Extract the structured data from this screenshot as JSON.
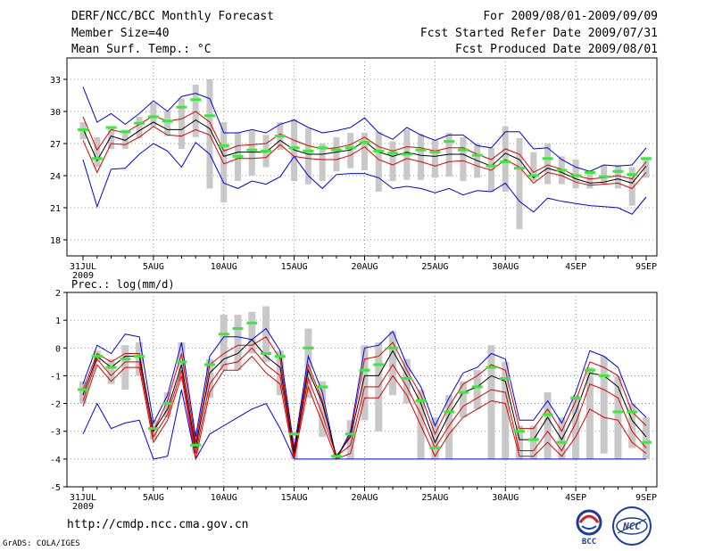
{
  "header": {
    "title": "DERF/NCC/BCC Monthly Forecast",
    "member_size": "Member Size=40",
    "variable": "Mean Surf. Temp.: °C",
    "period": "For 2009/08/01-2009/09/09",
    "started": "Fcst Started Refer Date 2009/07/31",
    "produced": "Fcst Produced Date 2009/08/01"
  },
  "footer": {
    "url": "http://cmdp.ncc.cma.gov.cn",
    "credit": "GrADS: COLA/IGES",
    "logo_bcc": "BCC",
    "logo_ncc": "NCC"
  },
  "colors": {
    "envelope": "#0000ee",
    "spread": "#e00000",
    "mean": "#000000",
    "bar": "#c8c8c8",
    "marker": "#33ee33"
  },
  "chart_data": [
    {
      "type": "line",
      "title": "Mean Surf. Temp.: °C",
      "x_start_label": "31JUL",
      "x_year_label": "2009",
      "x_tick_labels": [
        "31JUL",
        "5AUG",
        "10AUG",
        "15AUG",
        "20AUG",
        "25AUG",
        "30AUG",
        "4SEP",
        "9SEP"
      ],
      "x_tick_days": [
        0,
        5,
        10,
        15,
        20,
        25,
        30,
        35,
        40
      ],
      "ylim": [
        16.5,
        35.0
      ],
      "yticks": [
        18,
        21,
        24,
        27,
        30,
        33
      ],
      "grid": true,
      "series": [
        {
          "name": "max",
          "values": [
            32.3,
            29.0,
            29.8,
            28.8,
            29.8,
            31.0,
            30.0,
            31.4,
            31.7,
            31.2,
            28.0,
            28.0,
            28.3,
            28.0,
            28.8,
            29.2,
            28.5,
            28.0,
            28.2,
            28.5,
            29.4,
            28.0,
            27.4,
            28.5,
            27.8,
            27.3,
            27.8,
            27.8,
            26.8,
            26.6,
            28.1,
            28.1,
            26.5,
            26.6,
            25.5,
            24.8,
            24.4,
            25.0,
            24.9,
            25.0,
            26.6
          ]
        },
        {
          "name": "upper",
          "values": [
            29.5,
            26.4,
            28.3,
            28.0,
            28.8,
            29.6,
            29.1,
            29.3,
            30.0,
            29.0,
            26.3,
            26.8,
            26.9,
            27.0,
            27.9,
            27.3,
            26.8,
            26.5,
            26.6,
            26.9,
            27.6,
            26.7,
            26.3,
            26.7,
            26.6,
            26.3,
            26.6,
            26.6,
            26.0,
            25.5,
            26.5,
            26.0,
            24.3,
            25.0,
            24.6,
            24.0,
            23.7,
            23.8,
            24.0,
            23.7,
            25.3
          ]
        },
        {
          "name": "mean",
          "values": [
            28.4,
            25.4,
            27.7,
            27.3,
            28.2,
            29.0,
            28.3,
            28.3,
            29.2,
            28.4,
            25.8,
            26.2,
            26.2,
            26.2,
            27.3,
            26.4,
            26.0,
            26.0,
            26.2,
            26.4,
            27.2,
            26.2,
            25.8,
            26.2,
            25.9,
            25.8,
            26.0,
            26.0,
            25.4,
            24.9,
            26.1,
            25.5,
            23.8,
            24.7,
            24.3,
            23.7,
            23.3,
            23.4,
            23.7,
            23.3,
            24.9
          ]
        },
        {
          "name": "lower",
          "values": [
            27.3,
            24.3,
            27.0,
            26.9,
            27.6,
            28.6,
            27.8,
            27.7,
            28.3,
            27.8,
            25.1,
            25.6,
            25.6,
            25.7,
            26.9,
            25.8,
            25.6,
            25.5,
            25.5,
            25.9,
            26.7,
            25.5,
            25.0,
            25.6,
            25.3,
            24.9,
            25.3,
            25.4,
            24.9,
            24.5,
            25.5,
            24.8,
            23.3,
            24.3,
            24.0,
            23.4,
            23.1,
            23.2,
            23.3,
            22.8,
            24.3
          ]
        },
        {
          "name": "min",
          "values": [
            25.5,
            21.1,
            24.6,
            24.7,
            26.0,
            27.0,
            26.3,
            24.8,
            27.1,
            26.0,
            23.3,
            22.8,
            23.5,
            23.2,
            23.9,
            25.8,
            24.0,
            22.8,
            24.1,
            24.2,
            24.2,
            23.8,
            22.8,
            23.0,
            22.8,
            22.4,
            22.8,
            22.2,
            22.6,
            22.5,
            23.3,
            21.6,
            20.6,
            21.9,
            21.6,
            21.4,
            21.2,
            21.1,
            21.0,
            20.4,
            22.0
          ]
        },
        {
          "name": "bar_top",
          "values": [
            29.0,
            27.6,
            28.5,
            28.3,
            29.5,
            30.8,
            30.0,
            31.2,
            32.5,
            33.0,
            29.0,
            28.0,
            28.2,
            27.8,
            29.0,
            29.3,
            28.4,
            27.0,
            27.6,
            28.0,
            28.0,
            28.1,
            27.2,
            28.3,
            27.9,
            27.3,
            28.0,
            27.6,
            27.0,
            26.6,
            28.6,
            27.5,
            26.2,
            27.0,
            25.8,
            25.5,
            24.5,
            25.0,
            25.0,
            24.8,
            25.5
          ]
        },
        {
          "name": "bar_bottom",
          "values": [
            27.4,
            24.8,
            26.5,
            26.5,
            27.5,
            28.6,
            27.7,
            26.5,
            27.6,
            22.8,
            21.5,
            23.5,
            24.0,
            24.8,
            26.4,
            23.5,
            23.2,
            23.5,
            24.4,
            24.7,
            24.5,
            22.5,
            23.5,
            23.6,
            23.6,
            23.8,
            23.9,
            23.5,
            23.8,
            22.5,
            22.5,
            19.0,
            23.5,
            23.2,
            23.2,
            22.8,
            22.8,
            23.2,
            22.8,
            21.2,
            23.8
          ]
        },
        {
          "name": "observed_marker",
          "values": [
            28.3,
            25.6,
            28.5,
            28.1,
            28.9,
            29.5,
            29.1,
            30.4,
            31.1,
            29.6,
            26.8,
            25.8,
            26.4,
            26.3,
            27.7,
            26.6,
            26.3,
            26.6,
            26.4,
            26.6,
            27.1,
            26.3,
            26.1,
            26.0,
            26.4,
            26.2,
            27.2,
            26.4,
            25.9,
            24.9,
            25.3,
            24.7,
            24.0,
            25.6,
            24.5,
            24.0,
            24.3,
            23.9,
            24.4,
            24.1,
            25.6
          ]
        }
      ]
    },
    {
      "type": "line",
      "title": "Prec.: log(mm/d)",
      "x_start_label": "31JUL",
      "x_year_label": "2009",
      "x_tick_labels": [
        "31JUL",
        "5AUG",
        "10AUG",
        "15AUG",
        "20AUG",
        "25AUG",
        "30AUG",
        "4SEP",
        "9SEP"
      ],
      "x_tick_days": [
        0,
        5,
        10,
        15,
        20,
        25,
        30,
        35,
        40
      ],
      "ylim": [
        -5,
        2
      ],
      "yticks": [
        -5,
        -4,
        -3,
        -2,
        -1,
        0,
        1,
        2
      ],
      "grid": true,
      "series": [
        {
          "name": "max",
          "values": [
            -1.3,
            0.1,
            -0.2,
            0.5,
            0.4,
            -2.7,
            -1.7,
            0.2,
            -3.2,
            -0.3,
            0.4,
            0.4,
            0.3,
            0.7,
            -0.1,
            -3.6,
            -0.3,
            -1.6,
            -4.0,
            -3.0,
            0.0,
            0.1,
            0.6,
            -0.6,
            -1.4,
            -2.8,
            -1.8,
            -0.9,
            -0.7,
            -0.2,
            -0.4,
            -2.6,
            -2.6,
            -1.9,
            -2.7,
            -1.6,
            -0.1,
            -0.3,
            -0.7,
            -2.0,
            -2.5
          ]
        },
        {
          "name": "upper",
          "values": [
            -1.5,
            -0.2,
            -0.5,
            -0.2,
            -0.2,
            -3.0,
            -1.9,
            -0.2,
            -3.4,
            -0.6,
            -0.2,
            0.1,
            0.1,
            0.4,
            -0.4,
            -3.7,
            -0.6,
            -1.9,
            -4.0,
            -3.1,
            -0.4,
            -0.3,
            0.2,
            -0.8,
            -1.7,
            -3.1,
            -2.1,
            -1.3,
            -1.0,
            -0.6,
            -0.8,
            -2.9,
            -2.9,
            -2.2,
            -3.0,
            -1.9,
            -0.5,
            -0.7,
            -1.0,
            -2.3,
            -2.8
          ]
        },
        {
          "name": "mean",
          "values": [
            -1.7,
            -0.3,
            -0.7,
            -0.3,
            -0.3,
            -3.0,
            -2.2,
            -0.6,
            -3.6,
            -0.9,
            -0.4,
            -0.2,
            0.3,
            -0.3,
            -0.7,
            -3.8,
            -0.8,
            -2.0,
            -3.9,
            -3.2,
            -1.0,
            -1.0,
            -0.1,
            -1.0,
            -2.0,
            -3.4,
            -2.4,
            -1.6,
            -1.4,
            -1.0,
            -1.2,
            -3.3,
            -3.3,
            -2.5,
            -3.3,
            -2.3,
            -0.9,
            -1.0,
            -1.4,
            -2.6,
            -3.2
          ]
        },
        {
          "name": "lower",
          "values": [
            -1.9,
            -0.4,
            -1.0,
            -0.5,
            -0.5,
            -3.2,
            -2.4,
            -0.8,
            -3.8,
            -1.3,
            -0.6,
            -0.5,
            0.0,
            -0.6,
            -1.0,
            -3.9,
            -1.1,
            -2.4,
            -3.9,
            -3.5,
            -1.4,
            -1.4,
            -0.6,
            -1.4,
            -2.4,
            -3.6,
            -2.8,
            -2.1,
            -1.8,
            -1.5,
            -1.6,
            -3.7,
            -3.7,
            -3.0,
            -3.7,
            -2.7,
            -1.3,
            -1.5,
            -1.8,
            -3.0,
            -3.6
          ]
        },
        {
          "name": "lower2",
          "values": [
            -2.1,
            -0.6,
            -1.2,
            -0.7,
            -0.7,
            -3.4,
            -2.6,
            -1.0,
            -4.0,
            -1.6,
            -0.8,
            -0.8,
            -0.3,
            -0.9,
            -1.3,
            -4.0,
            -1.4,
            -2.7,
            -4.0,
            -3.8,
            -1.8,
            -1.8,
            -1.0,
            -1.7,
            -2.8,
            -3.9,
            -3.1,
            -2.5,
            -2.2,
            -1.9,
            -2.0,
            -3.9,
            -3.9,
            -3.4,
            -3.9,
            -3.2,
            -2.2,
            -2.5,
            -2.6,
            -3.4,
            -3.8
          ]
        },
        {
          "name": "min",
          "values": [
            -3.1,
            -2.0,
            -2.9,
            -2.7,
            -2.6,
            -4.0,
            -3.9,
            -1.5,
            -4.0,
            -3.1,
            -2.8,
            -2.5,
            -2.2,
            -2.0,
            -2.9,
            -4.0,
            -4.0,
            -4.0,
            -4.0,
            -4.0,
            -4.0,
            -4.0,
            -4.0,
            -4.0,
            -4.0,
            -4.0,
            -4.0,
            -4.0,
            -4.0,
            -4.0,
            -4.0,
            -4.0,
            -4.0,
            -4.0,
            -4.0,
            -4.0,
            -4.0,
            -4.0,
            -4.0,
            -4.0,
            -4.0
          ]
        },
        {
          "name": "bar_top",
          "values": [
            -1.2,
            -0.1,
            -0.4,
            0.1,
            0.2,
            -2.6,
            -1.6,
            0.2,
            -3.0,
            -0.4,
            1.2,
            1.2,
            1.3,
            1.5,
            -0.1,
            -3.4,
            0.7,
            -1.2,
            -3.8,
            -2.6,
            0.1,
            0.2,
            0.6,
            -0.4,
            -1.5,
            -2.5,
            -1.7,
            -1.2,
            -0.8,
            0.1,
            -0.5,
            -2.8,
            -2.8,
            -1.6,
            -2.5,
            -1.7,
            -0.7,
            -0.3,
            -1.0,
            -2.0,
            -2.5
          ]
        },
        {
          "name": "bar_bottom",
          "values": [
            -2.0,
            -0.5,
            -1.3,
            -1.5,
            -1.0,
            -3.3,
            -2.5,
            -1.2,
            -3.8,
            -1.8,
            -0.8,
            -0.8,
            -0.2,
            -0.5,
            -1.7,
            -4.0,
            -1.8,
            -3.2,
            -4.0,
            -4.0,
            -2.6,
            -3.0,
            -1.7,
            -2.0,
            -4.0,
            -4.0,
            -4.0,
            -2.5,
            -2.2,
            -4.0,
            -4.0,
            -4.0,
            -4.0,
            -4.0,
            -4.0,
            -4.0,
            -4.0,
            -3.8,
            -4.0,
            -3.6,
            -4.0
          ]
        },
        {
          "name": "observed_marker",
          "values": [
            -1.5,
            -0.3,
            -0.7,
            -0.4,
            -0.3,
            -2.9,
            -2.0,
            -0.5,
            -3.5,
            -0.6,
            0.5,
            0.7,
            0.9,
            -0.2,
            -0.3,
            -3.1,
            0.0,
            -1.4,
            -3.9,
            -3.1,
            -0.8,
            -0.6,
            0.0,
            -1.1,
            -1.9,
            -3.6,
            -2.3,
            -1.6,
            -1.4,
            -0.7,
            -1.1,
            -3.0,
            -3.3,
            -2.4,
            -3.4,
            -1.8,
            -0.8,
            -1.0,
            -2.3,
            -2.3,
            -3.4
          ]
        }
      ]
    }
  ]
}
